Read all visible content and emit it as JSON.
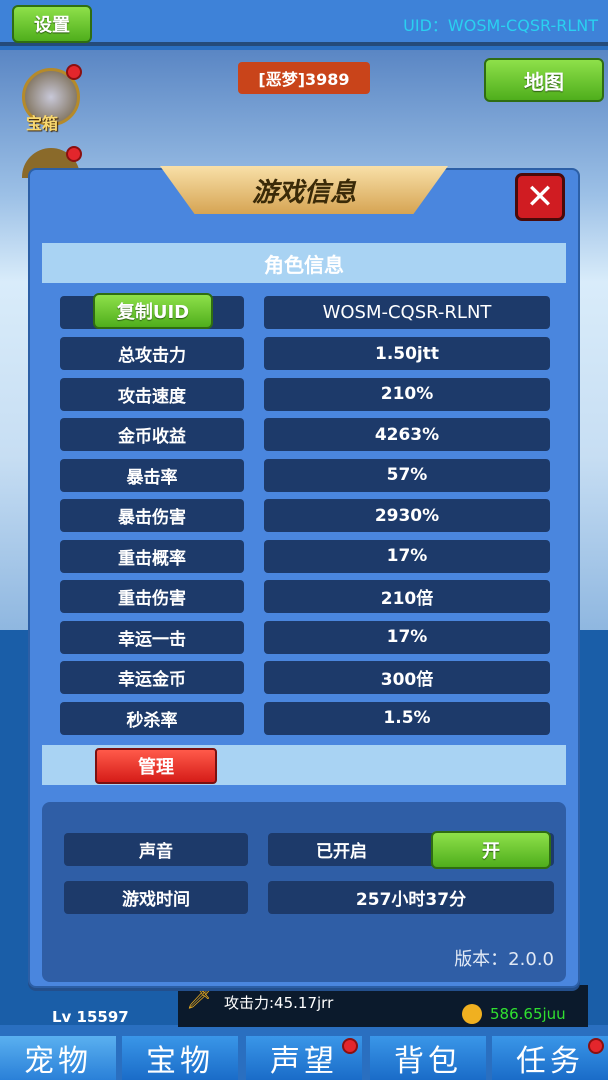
{
  "topbar": {
    "settings_label": "设置",
    "uid_text": "UID：WOSM-CQSR-RLNT"
  },
  "scene": {
    "stage_badge": "[恶梦]3989",
    "map_label": "地图",
    "chest_label": "宝箱"
  },
  "bottom_panel": {
    "level": "Lv 15597",
    "attack": "攻击力:45.17jrr",
    "gold": "586.65juu"
  },
  "tabs": [
    {
      "label": "宠物",
      "dot": false
    },
    {
      "label": "宝物",
      "dot": false
    },
    {
      "label": "声望",
      "dot": true
    },
    {
      "label": "背包",
      "dot": false
    },
    {
      "label": "任务",
      "dot": true
    }
  ],
  "modal": {
    "title": "游戏信息",
    "section_title": "角色信息",
    "copy_uid_label": "复制UID",
    "uid_value": "WOSM-CQSR-RLNT",
    "stats": [
      {
        "label": "总攻击力",
        "value": "1.50jtt"
      },
      {
        "label": "攻击速度",
        "value": "210%"
      },
      {
        "label": "金币收益",
        "value": "4263%"
      },
      {
        "label": "暴击率",
        "value": "57%"
      },
      {
        "label": "暴击伤害",
        "value": "2930%"
      },
      {
        "label": "重击概率",
        "value": "17%"
      },
      {
        "label": "重击伤害",
        "value": "210倍"
      },
      {
        "label": "幸运一击",
        "value": "17%"
      },
      {
        "label": "幸运金币",
        "value": "300倍"
      },
      {
        "label": "秒杀率",
        "value": "1.5%"
      }
    ],
    "manage_label": "管理",
    "sound_label": "声音",
    "sound_status": "已开启",
    "sound_toggle": "开",
    "playtime_label": "游戏时间",
    "playtime_value": "257小时37分",
    "version": "版本：2.0.0"
  },
  "colors": {
    "accent_green": "#5cbc22",
    "modal_blue": "#4a86de",
    "cell_navy": "#1d3a6a",
    "close_red": "#d01c22",
    "uid_cyan": "#2ad0f0"
  }
}
